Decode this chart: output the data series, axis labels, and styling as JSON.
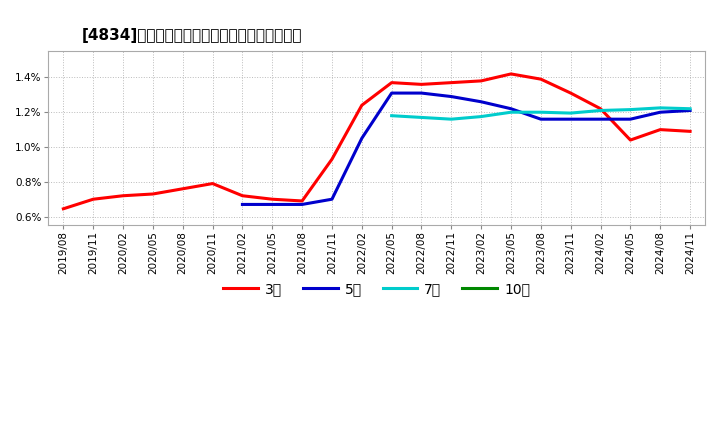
{
  "title": "[4834]　当期純利益マージンの標準偏差の推移",
  "ylim": [
    0.0055,
    0.0155
  ],
  "yticks": [
    0.006,
    0.008,
    0.01,
    0.012,
    0.014
  ],
  "background_color": "#ffffff",
  "plot_bg_color": "#ffffff",
  "grid_color": "#aaaaaa",
  "legend": [
    "3年",
    "5年",
    "7年",
    "10年"
  ],
  "legend_colors": [
    "#ff0000",
    "#0000cc",
    "#00cccc",
    "#008800"
  ],
  "x_labels": [
    "2019/08",
    "2019/11",
    "2020/02",
    "2020/05",
    "2020/08",
    "2020/11",
    "2021/02",
    "2021/05",
    "2021/08",
    "2021/11",
    "2022/02",
    "2022/05",
    "2022/08",
    "2022/11",
    "2023/02",
    "2023/05",
    "2023/08",
    "2023/11",
    "2024/02",
    "2024/05",
    "2024/08",
    "2024/11"
  ],
  "series_3yr": [
    0.00645,
    0.007,
    0.0072,
    0.0073,
    0.0076,
    0.0079,
    0.0072,
    0.007,
    0.0069,
    0.0093,
    0.0124,
    0.0137,
    0.0136,
    0.0137,
    0.0138,
    0.0142,
    0.0139,
    0.0131,
    0.0122,
    0.0104,
    0.011,
    0.0109
  ],
  "series_5yr": [
    null,
    null,
    null,
    null,
    null,
    null,
    0.0067,
    0.0067,
    0.0067,
    0.007,
    0.0105,
    0.0131,
    0.0131,
    0.0129,
    0.0126,
    0.0122,
    0.0116,
    0.0116,
    0.0116,
    0.0116,
    0.012,
    0.0121
  ],
  "series_7yr": [
    null,
    null,
    null,
    null,
    null,
    null,
    null,
    null,
    null,
    null,
    null,
    0.0118,
    0.0117,
    0.0116,
    0.01175,
    0.012,
    0.012,
    0.01195,
    0.0121,
    0.01215,
    0.01225,
    0.0122
  ],
  "series_10yr": [
    null,
    null,
    null,
    null,
    null,
    null,
    null,
    null,
    null,
    null,
    null,
    null,
    null,
    null,
    null,
    null,
    null,
    null,
    null,
    null,
    null,
    null
  ],
  "line_width": 2.2
}
